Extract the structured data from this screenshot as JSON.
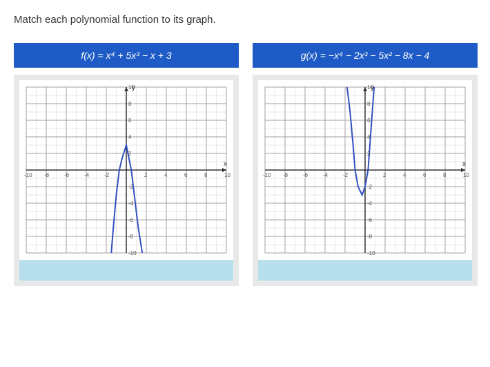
{
  "instruction": "Match each polynomial function to its graph.",
  "problems": [
    {
      "formula": "f(x) = x⁴ + 5x³ − x + 3",
      "graph": {
        "xlim": [
          -10,
          10
        ],
        "ylim": [
          -10,
          10
        ],
        "ytick_step": 2,
        "xtick_step": 2,
        "grid_minor": 1,
        "curve_points": [
          [
            -1.5,
            -10
          ],
          [
            -1.3,
            -7
          ],
          [
            -1.0,
            -3
          ],
          [
            -0.7,
            0
          ],
          [
            -0.4,
            1.5
          ],
          [
            0,
            3
          ],
          [
            0.5,
            0
          ],
          [
            0.8,
            -3
          ],
          [
            1.2,
            -7
          ],
          [
            1.6,
            -10
          ]
        ],
        "curve_color": "#3050c0",
        "background": "#ffffff"
      }
    },
    {
      "formula": "g(x) = −x⁴ − 2x³ − 5x² − 8x − 4",
      "graph": {
        "xlim": [
          -10,
          10
        ],
        "ylim": [
          -10,
          10
        ],
        "ytick_step": 2,
        "xtick_step": 2,
        "grid_minor": 1,
        "curve_points": [
          [
            -1.8,
            10
          ],
          [
            -1.5,
            7
          ],
          [
            -1.2,
            3
          ],
          [
            -1.0,
            0
          ],
          [
            -0.7,
            -2
          ],
          [
            -0.3,
            -3
          ],
          [
            0,
            -2
          ],
          [
            0.3,
            0
          ],
          [
            0.6,
            5
          ],
          [
            0.9,
            10
          ]
        ],
        "curve_color": "#3050c0",
        "background": "#ffffff"
      }
    }
  ]
}
